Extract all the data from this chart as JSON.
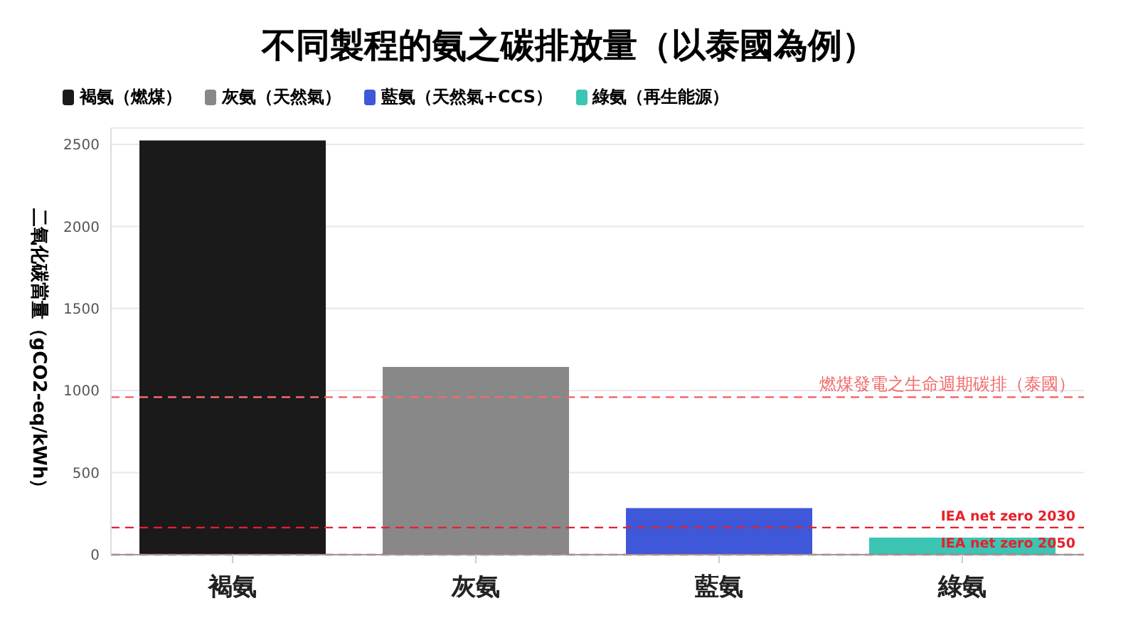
{
  "chart_data": {
    "type": "bar",
    "title": "不同製程的氨之碳排放量（以泰國為例）",
    "ylabel": "二氧化碳當量（gCO2-eq/kWh）",
    "categories": [
      "褐氨",
      "灰氨",
      "藍氨",
      "綠氨"
    ],
    "stacked": true,
    "series": [
      {
        "name": "褐氨（燃煤）",
        "color": "#1a1a1a",
        "values": [
          2520,
          null,
          null,
          null
        ]
      },
      {
        "name": "灰氨（天然氣）",
        "color": "#888888",
        "values": [
          null,
          1140,
          null,
          null
        ]
      },
      {
        "name": "藍氨（天然氣+CCS）",
        "color": "#3f57d9",
        "values": [
          null,
          null,
          280,
          null
        ]
      },
      {
        "name": "綠氨（再生能源）",
        "color": "#3cc4b4",
        "values": [
          null,
          null,
          null,
          100
        ]
      }
    ],
    "ylim": [
      0,
      2600
    ],
    "yticks": [
      0,
      500,
      1000,
      1500,
      2000,
      2500
    ],
    "grid": "y",
    "legend": "top left",
    "ref_lines": [
      {
        "axis": "y",
        "value": 960,
        "label": "燃煤發電之生命週期碳排（泰國）",
        "color": "#f26b6b",
        "line_style": "dashed"
      },
      {
        "axis": "y",
        "value": 165,
        "label": "IEA net zero 2030",
        "color": "#e8202a",
        "line_style": "dashed"
      },
      {
        "axis": "y",
        "value": 0,
        "label": "IEA net zero 2050",
        "color": "#e8202a",
        "line_style": "dashed"
      }
    ]
  }
}
